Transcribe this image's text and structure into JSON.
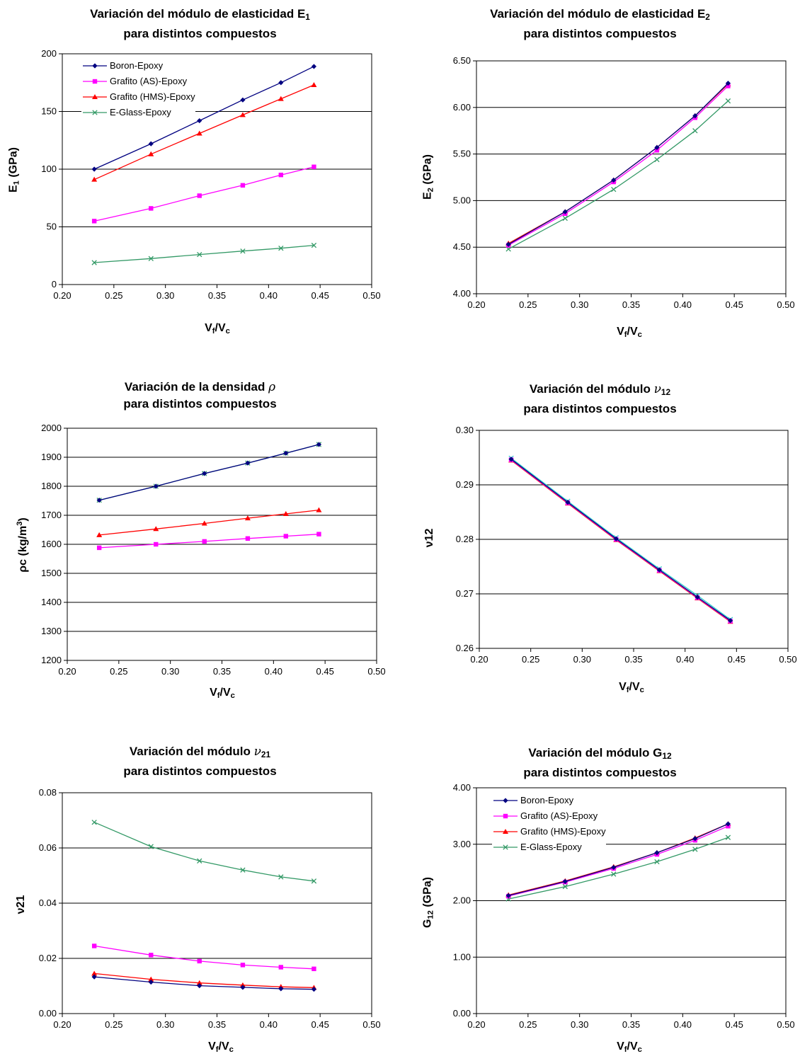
{
  "colors": {
    "boron": "#000080",
    "as": "#ff00ff",
    "hms": "#ff0000",
    "glass": "#339966",
    "grid": "#000000",
    "nu_glass": "#33cccc"
  },
  "series_names": [
    "Boron-Epoxy",
    "Grafito (AS)-Epoxy",
    "Grafito (HMS)-Epoxy",
    "E-Glass-Epoxy"
  ],
  "text": {
    "t1_l1": "Variación del módulo de elasticidad E",
    "t1_l1_sub": "1",
    "t2_l1": "Variación del módulo de elasticidad E",
    "t2_l1_sub": "2",
    "t3_l1": "Variación de la densidad ",
    "t3_sym": "ρ",
    "t4_l1": "Variación del módulo ",
    "t4_sym": "ν",
    "t4_sub": "12",
    "t5_l1": "Variación del módulo ",
    "t5_sym": "ν",
    "t5_sub": "21",
    "t6_l1": "Variación del módulo G",
    "t6_sub": "12",
    "t_l2": "para distintos compuestos",
    "y1": "E",
    "y1_sub": "1",
    "y1_tail": " (GPa)",
    "y2": "E",
    "y2_sub": "2",
    "y2_tail": " (GPa)",
    "y3": "ρc (kg/m",
    "y3_sup": "3",
    "y3_tail": ")",
    "y4": "ν12",
    "y5": "ν21",
    "y6": "G",
    "y6_sub": "12",
    "y6_tail": " (GPa)",
    "x_v": "V",
    "x_f": "f",
    "x_slash": "/V",
    "x_c": "c"
  },
  "chart_data": [
    {
      "type": "line",
      "title": "Variación del módulo de elasticidad E1 para distintos compuestos",
      "xlabel": "Vf/Vc",
      "ylabel": "E1 (GPa)",
      "xlim": [
        0.2,
        0.5
      ],
      "ylim": [
        0,
        200
      ],
      "xticks": [
        "0.20",
        "0.25",
        "0.30",
        "0.35",
        "0.40",
        "0.45",
        "0.50"
      ],
      "yticks": [
        "0",
        "50",
        "100",
        "150",
        "200"
      ],
      "grid": "horizontal",
      "legend": "top-left",
      "x": [
        0.231,
        0.286,
        0.333,
        0.375,
        0.412,
        0.444
      ],
      "series": [
        {
          "name": "Boron-Epoxy",
          "values": [
            100,
            122,
            142,
            160,
            175,
            189
          ]
        },
        {
          "name": "Grafito (AS)-Epoxy",
          "values": [
            55,
            66,
            77,
            86,
            95,
            102
          ]
        },
        {
          "name": "Grafito (HMS)-Epoxy",
          "values": [
            91,
            113,
            131,
            147,
            161,
            173
          ]
        },
        {
          "name": "E-Glass-Epoxy",
          "values": [
            19,
            22.5,
            26,
            29,
            31.5,
            34
          ]
        }
      ]
    },
    {
      "type": "line",
      "title": "Variación del módulo de elasticidad E2 para distintos compuestos",
      "xlabel": "Vf/Vc",
      "ylabel": "E2 (GPa)",
      "xlim": [
        0.2,
        0.5
      ],
      "ylim": [
        4.0,
        6.5
      ],
      "xticks": [
        "0.20",
        "0.25",
        "0.30",
        "0.35",
        "0.40",
        "0.45",
        "0.50"
      ],
      "yticks": [
        "4.00",
        "4.50",
        "5.00",
        "5.50",
        "6.00",
        "6.50"
      ],
      "grid": "horizontal",
      "legend": "none",
      "x": [
        0.231,
        0.286,
        0.333,
        0.375,
        0.412,
        0.444
      ],
      "series": [
        {
          "name": "Boron-Epoxy",
          "values": [
            4.53,
            4.88,
            5.22,
            5.57,
            5.91,
            6.26
          ]
        },
        {
          "name": "Grafito (AS)-Epoxy",
          "values": [
            4.52,
            4.86,
            5.2,
            5.54,
            5.89,
            6.23
          ]
        },
        {
          "name": "Grafito (HMS)-Epoxy",
          "values": [
            4.54,
            4.88,
            5.22,
            5.57,
            5.91,
            6.25
          ]
        },
        {
          "name": "E-Glass-Epoxy",
          "values": [
            4.48,
            4.81,
            5.12,
            5.44,
            5.75,
            6.07
          ]
        }
      ]
    },
    {
      "type": "line",
      "title": "Variación de la densidad ρ para distintos compuestos",
      "xlabel": "Vf/Vc",
      "ylabel": "ρc (kg/m3)",
      "xlim": [
        0.2,
        0.5
      ],
      "ylim": [
        1200,
        2000
      ],
      "xticks": [
        "0.20",
        "0.25",
        "0.30",
        "0.35",
        "0.40",
        "0.45",
        "0.50"
      ],
      "yticks": [
        "1200",
        "1300",
        "1400",
        "1500",
        "1600",
        "1700",
        "1800",
        "1900",
        "2000"
      ],
      "grid": "horizontal",
      "legend": "none",
      "x": [
        0.231,
        0.286,
        0.333,
        0.375,
        0.412,
        0.444
      ],
      "series": [
        {
          "name": "Boron-Epoxy",
          "values": [
            1752,
            1800,
            1844,
            1880,
            1914,
            1944
          ]
        },
        {
          "name": "Grafito (AS)-Epoxy",
          "values": [
            1588,
            1600,
            1610,
            1620,
            1628,
            1635
          ]
        },
        {
          "name": "Grafito (HMS)-Epoxy",
          "values": [
            1632,
            1653,
            1672,
            1690,
            1705,
            1718
          ]
        },
        {
          "name": "E-Glass-Epoxy",
          "values": [
            1752,
            1800,
            1844,
            1880,
            1914,
            1944
          ]
        }
      ]
    },
    {
      "type": "line",
      "title": "Variación del módulo ν12 para distintos compuestos",
      "xlabel": "Vf/Vc",
      "ylabel": "ν12",
      "xlim": [
        0.2,
        0.5
      ],
      "ylim": [
        0.26,
        0.3
      ],
      "xticks": [
        "0.20",
        "0.25",
        "0.30",
        "0.35",
        "0.40",
        "0.45",
        "0.50"
      ],
      "yticks": [
        "0.26",
        "0.27",
        "0.28",
        "0.29",
        "0.30"
      ],
      "grid": "horizontal",
      "legend": "none",
      "x": [
        0.231,
        0.286,
        0.333,
        0.375,
        0.412,
        0.444
      ],
      "series": [
        {
          "name": "Boron-Epoxy",
          "values": [
            0.2947,
            0.2868,
            0.2801,
            0.2744,
            0.2694,
            0.2651
          ]
        },
        {
          "name": "Grafito (AS)-Epoxy",
          "values": [
            0.2946,
            0.2867,
            0.28,
            0.2743,
            0.2693,
            0.265
          ]
        },
        {
          "name": "Grafito (HMS)-Epoxy",
          "values": [
            0.2945,
            0.2866,
            0.2799,
            0.2742,
            0.2692,
            0.2649
          ]
        },
        {
          "name": "E-Glass-Epoxy",
          "values": [
            0.2949,
            0.287,
            0.2803,
            0.2746,
            0.2697,
            0.2653
          ]
        }
      ]
    },
    {
      "type": "line",
      "title": "Variación del módulo ν21 para distintos compuestos",
      "xlabel": "Vf/Vc",
      "ylabel": "ν21",
      "xlim": [
        0.2,
        0.5
      ],
      "ylim": [
        0,
        0.08
      ],
      "xticks": [
        "0.20",
        "0.25",
        "0.30",
        "0.35",
        "0.40",
        "0.45",
        "0.50"
      ],
      "yticks": [
        "0.00",
        "0.02",
        "0.04",
        "0.06",
        "0.08"
      ],
      "grid": "horizontal",
      "legend": "none",
      "x": [
        0.231,
        0.286,
        0.333,
        0.375,
        0.412,
        0.444
      ],
      "series": [
        {
          "name": "Boron-Epoxy",
          "values": [
            0.0133,
            0.0114,
            0.0101,
            0.0095,
            0.009,
            0.0088
          ]
        },
        {
          "name": "Grafito (AS)-Epoxy",
          "values": [
            0.0245,
            0.0212,
            0.019,
            0.0176,
            0.0168,
            0.0162
          ]
        },
        {
          "name": "Grafito (HMS)-Epoxy",
          "values": [
            0.0145,
            0.0124,
            0.0111,
            0.0103,
            0.0097,
            0.0094
          ]
        },
        {
          "name": "E-Glass-Epoxy",
          "values": [
            0.0693,
            0.0605,
            0.0553,
            0.052,
            0.0495,
            0.048
          ]
        }
      ]
    },
    {
      "type": "line",
      "title": "Variación del módulo G12 para distintos compuestos",
      "xlabel": "Vf/Vc",
      "ylabel": "G12 (GPa)",
      "xlim": [
        0.2,
        0.5
      ],
      "ylim": [
        0,
        4
      ],
      "xticks": [
        "0.20",
        "0.25",
        "0.30",
        "0.35",
        "0.40",
        "0.45",
        "0.50"
      ],
      "yticks": [
        "0.00",
        "1.00",
        "2.00",
        "3.00",
        "4.00"
      ],
      "grid": "horizontal",
      "legend": "top-left",
      "x": [
        0.231,
        0.286,
        0.333,
        0.375,
        0.412,
        0.444
      ],
      "series": [
        {
          "name": "Boron-Epoxy",
          "values": [
            2.09,
            2.34,
            2.59,
            2.85,
            3.1,
            3.36
          ]
        },
        {
          "name": "Grafito (AS)-Epoxy",
          "values": [
            2.08,
            2.33,
            2.57,
            2.82,
            3.07,
            3.32
          ]
        },
        {
          "name": "Grafito (HMS)-Epoxy",
          "values": [
            2.1,
            2.35,
            2.6,
            2.85,
            3.11,
            3.36
          ]
        },
        {
          "name": "E-Glass-Epoxy",
          "values": [
            2.03,
            2.25,
            2.47,
            2.69,
            2.91,
            3.12
          ]
        }
      ]
    }
  ]
}
